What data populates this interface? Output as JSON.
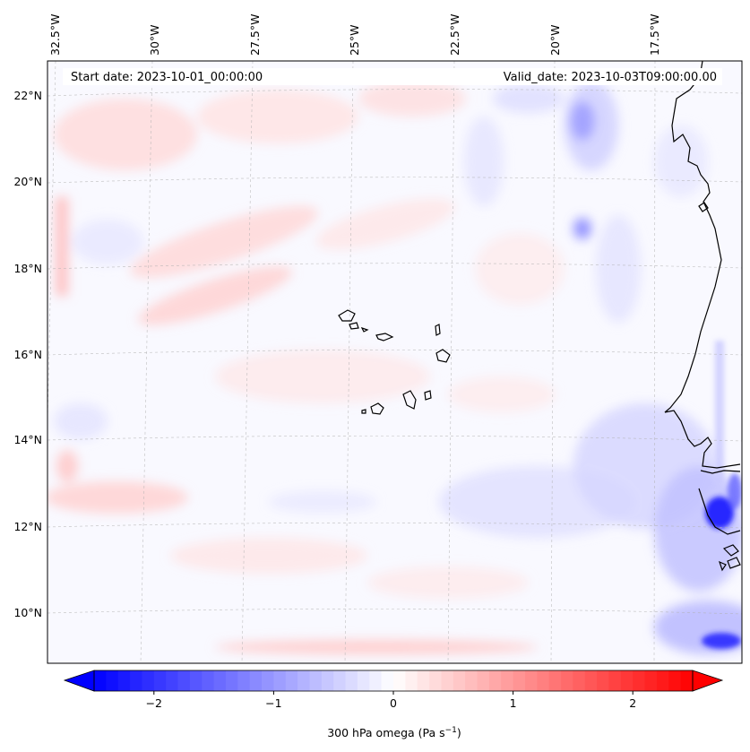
{
  "header": {
    "start_date": "Start date: 2023-10-01_00:00:00",
    "valid_date": "Valid_date: 2023-10-03T09:00:00.00"
  },
  "lon_labels": [
    "32.5°W",
    "30°W",
    "27.5°W",
    "25°W",
    "22.5°W",
    "20°W",
    "17.5°W"
  ],
  "lat_labels": [
    "22°N",
    "20°N",
    "18°N",
    "16°N",
    "14°N",
    "12°N",
    "10°N"
  ],
  "colorbar": {
    "ticks": [
      {
        "value": -2,
        "label": "−2"
      },
      {
        "value": -1,
        "label": "−1"
      },
      {
        "value": 0,
        "label": "0"
      },
      {
        "value": 1,
        "label": "1"
      },
      {
        "value": 2,
        "label": "2"
      }
    ],
    "vmin": -2.5,
    "vmax": 2.5,
    "label_main": "300 hPa omega (Pa s",
    "label_sup": "−1",
    "label_end": ")",
    "color_negative": "#0000ff",
    "color_zero": "#ffffff",
    "color_positive": "#ff0000"
  },
  "chart_data": {
    "type": "heatmap",
    "variable": "300 hPa omega (Pa s−1)",
    "x_range": [
      "33°W",
      "15.5°W"
    ],
    "y_range": [
      "9°N",
      "22.7°N"
    ],
    "value_range": [
      -2.5,
      2.5
    ],
    "grid": true
  }
}
